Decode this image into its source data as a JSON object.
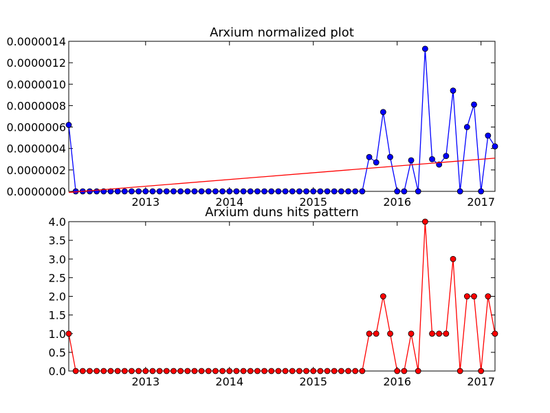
{
  "chart_data": [
    {
      "type": "line",
      "title": "Arxium normalized plot",
      "xlabel": "",
      "ylabel": "",
      "x_range": [
        "2012-02",
        "2017-03"
      ],
      "ylim": [
        0,
        1.4e-06
      ],
      "y_tick_labels": [
        "0.0000000",
        "0.0000002",
        "0.0000004",
        "0.0000006",
        "0.0000008",
        "0.0000010",
        "0.0000012",
        "0.0000014"
      ],
      "x_tick_labels": [
        "2013",
        "2014",
        "2015",
        "2016",
        "2017"
      ],
      "grid": false,
      "series": [
        {
          "color": "#0000ff",
          "marker": "circle",
          "x": [
            "2012-02",
            "2012-03",
            "2012-04",
            "2012-05",
            "2012-06",
            "2012-07",
            "2012-08",
            "2012-09",
            "2012-10",
            "2012-11",
            "2012-12",
            "2013-01",
            "2013-02",
            "2013-03",
            "2013-04",
            "2013-05",
            "2013-06",
            "2013-07",
            "2013-08",
            "2013-09",
            "2013-10",
            "2013-11",
            "2013-12",
            "2014-01",
            "2014-02",
            "2014-03",
            "2014-04",
            "2014-05",
            "2014-06",
            "2014-07",
            "2014-08",
            "2014-09",
            "2014-10",
            "2014-11",
            "2014-12",
            "2015-01",
            "2015-02",
            "2015-03",
            "2015-04",
            "2015-05",
            "2015-06",
            "2015-07",
            "2015-08",
            "2015-09",
            "2015-10",
            "2015-11",
            "2015-12",
            "2016-01",
            "2016-02",
            "2016-03",
            "2016-04",
            "2016-05",
            "2016-06",
            "2016-07",
            "2016-08",
            "2016-09",
            "2016-10",
            "2016-11",
            "2016-12",
            "2017-01",
            "2017-02",
            "2017-03"
          ],
          "values": [
            6.2e-07,
            0,
            0,
            0,
            0,
            0,
            0,
            0,
            0,
            0,
            0,
            0,
            0,
            0,
            0,
            0,
            0,
            0,
            0,
            0,
            0,
            0,
            0,
            0,
            0,
            0,
            0,
            0,
            0,
            0,
            0,
            0,
            0,
            0,
            0,
            0,
            0,
            0,
            0,
            0,
            0,
            0,
            0,
            3.2e-07,
            2.7e-07,
            7.4e-07,
            3.2e-07,
            0,
            0,
            2.9e-07,
            0,
            1.33e-06,
            3e-07,
            2.5e-07,
            3.3e-07,
            9.4e-07,
            0,
            6e-07,
            8.1e-07,
            0,
            5.2e-07,
            4.2e-07
          ]
        },
        {
          "color": "#ff0000",
          "marker": "none",
          "x": [
            "2012-02",
            "2017-03"
          ],
          "values": [
            -1e-08,
            3.1e-07
          ]
        }
      ]
    },
    {
      "type": "line",
      "title": "Arxium duns hits pattern",
      "xlabel": "",
      "ylabel": "",
      "x_range": [
        "2012-02",
        "2017-03"
      ],
      "ylim": [
        0,
        4
      ],
      "y_tick_labels": [
        "0.0",
        "0.5",
        "1.0",
        "1.5",
        "2.0",
        "2.5",
        "3.0",
        "3.5",
        "4.0"
      ],
      "x_tick_labels": [
        "2013",
        "2014",
        "2015",
        "2016",
        "2017"
      ],
      "grid": false,
      "series": [
        {
          "color": "#ff0000",
          "marker": "circle",
          "x": [
            "2012-02",
            "2012-03",
            "2012-04",
            "2012-05",
            "2012-06",
            "2012-07",
            "2012-08",
            "2012-09",
            "2012-10",
            "2012-11",
            "2012-12",
            "2013-01",
            "2013-02",
            "2013-03",
            "2013-04",
            "2013-05",
            "2013-06",
            "2013-07",
            "2013-08",
            "2013-09",
            "2013-10",
            "2013-11",
            "2013-12",
            "2014-01",
            "2014-02",
            "2014-03",
            "2014-04",
            "2014-05",
            "2014-06",
            "2014-07",
            "2014-08",
            "2014-09",
            "2014-10",
            "2014-11",
            "2014-12",
            "2015-01",
            "2015-02",
            "2015-03",
            "2015-04",
            "2015-05",
            "2015-06",
            "2015-07",
            "2015-08",
            "2015-09",
            "2015-10",
            "2015-11",
            "2015-12",
            "2016-01",
            "2016-02",
            "2016-03",
            "2016-04",
            "2016-05",
            "2016-06",
            "2016-07",
            "2016-08",
            "2016-09",
            "2016-10",
            "2016-11",
            "2016-12",
            "2017-01",
            "2017-02",
            "2017-03"
          ],
          "values": [
            1,
            0,
            0,
            0,
            0,
            0,
            0,
            0,
            0,
            0,
            0,
            0,
            0,
            0,
            0,
            0,
            0,
            0,
            0,
            0,
            0,
            0,
            0,
            0,
            0,
            0,
            0,
            0,
            0,
            0,
            0,
            0,
            0,
            0,
            0,
            0,
            0,
            0,
            0,
            0,
            0,
            0,
            0,
            1,
            1,
            2,
            1,
            0,
            0,
            1,
            0,
            4,
            1,
            1,
            1,
            3,
            0,
            2,
            2,
            0,
            2,
            1
          ]
        }
      ]
    }
  ]
}
